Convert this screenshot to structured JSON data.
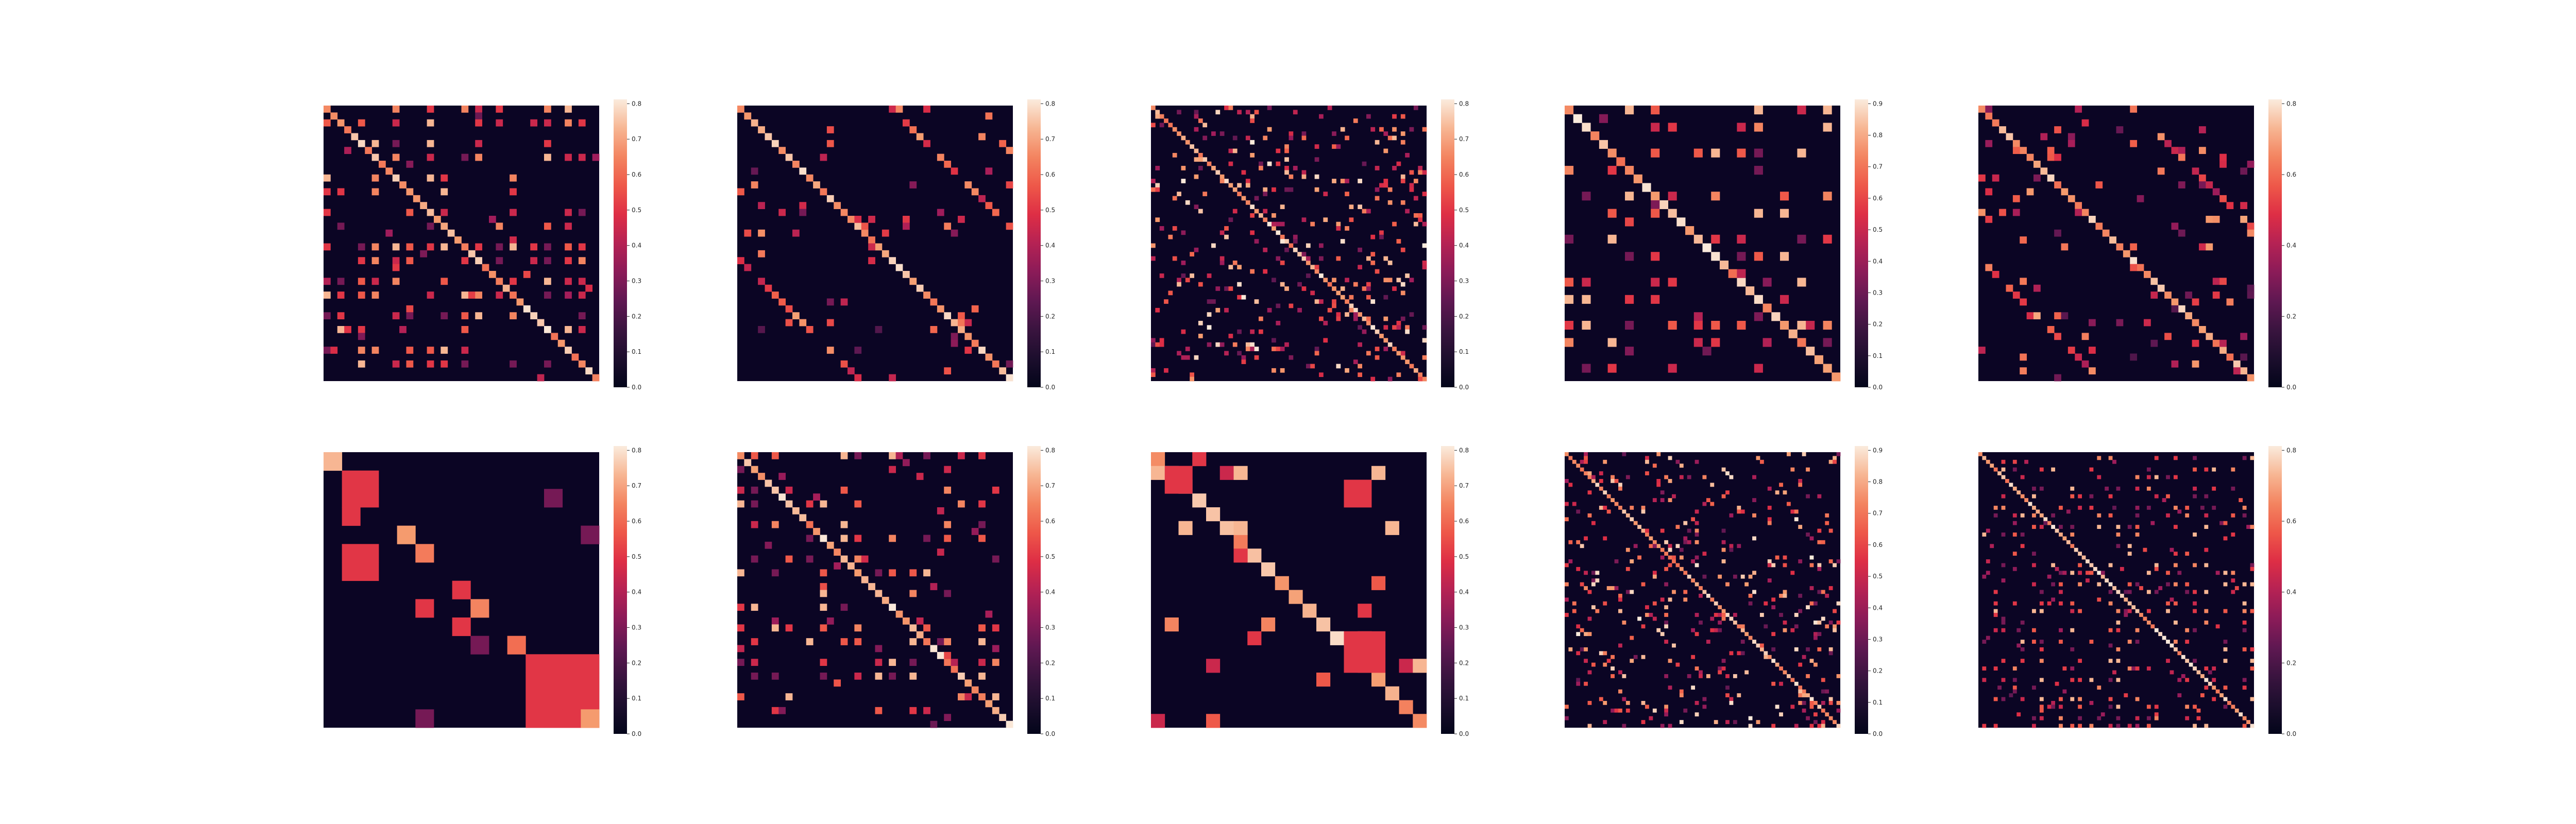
{
  "chart_data": [
    {
      "type": "heatmap",
      "pattern": "block-grid",
      "n": 40,
      "seed": 11,
      "density": 0.55,
      "cbar_max": 0.8,
      "cbar_ticks": [
        "0.0",
        "0.1",
        "0.2",
        "0.3",
        "0.4",
        "0.5",
        "0.6",
        "0.7",
        "0.8"
      ]
    },
    {
      "type": "heatmap",
      "pattern": "offdiag",
      "n": 40,
      "seed": 23,
      "density": 0.03,
      "cbar_max": 0.8,
      "cbar_ticks": [
        "0.0",
        "0.1",
        "0.2",
        "0.3",
        "0.4",
        "0.5",
        "0.6",
        "0.7",
        "0.8"
      ]
    },
    {
      "type": "heatmap",
      "pattern": "dense-dots",
      "n": 64,
      "seed": 37,
      "density": 0.09,
      "cbar_max": 0.8,
      "cbar_ticks": [
        "0.0",
        "0.1",
        "0.2",
        "0.3",
        "0.4",
        "0.5",
        "0.6",
        "0.7",
        "0.8"
      ]
    },
    {
      "type": "heatmap",
      "pattern": "block-grid",
      "n": 32,
      "seed": 41,
      "density": 0.4,
      "cbar_max": 0.9,
      "cbar_ticks": [
        "0.0",
        "0.1",
        "0.2",
        "0.3",
        "0.4",
        "0.5",
        "0.6",
        "0.7",
        "0.8",
        "0.9"
      ]
    },
    {
      "type": "heatmap",
      "pattern": "offdiag",
      "n": 40,
      "seed": 53,
      "density": 0.06,
      "cbar_max": 0.8,
      "cbar_ticks": [
        "0.0",
        "0.2",
        "0.4",
        "0.6",
        "0.8"
      ]
    },
    {
      "type": "heatmap",
      "pattern": "big-blocks",
      "n": 15,
      "seed": 61,
      "density": 0.0,
      "cbar_max": 0.8,
      "cbar_ticks": [
        "0.0",
        "0.1",
        "0.2",
        "0.3",
        "0.4",
        "0.5",
        "0.6",
        "0.7",
        "0.8"
      ]
    },
    {
      "type": "heatmap",
      "pattern": "block-grid",
      "n": 40,
      "seed": 71,
      "density": 0.3,
      "cbar_max": 0.8,
      "cbar_ticks": [
        "0.0",
        "0.1",
        "0.2",
        "0.3",
        "0.4",
        "0.5",
        "0.6",
        "0.7",
        "0.8"
      ]
    },
    {
      "type": "heatmap",
      "pattern": "medium-blocks",
      "n": 20,
      "seed": 83,
      "density": 0.05,
      "cbar_max": 0.8,
      "cbar_ticks": [
        "0.0",
        "0.1",
        "0.2",
        "0.3",
        "0.4",
        "0.5",
        "0.6",
        "0.7",
        "0.8"
      ]
    },
    {
      "type": "heatmap",
      "pattern": "dense-dots",
      "n": 72,
      "seed": 97,
      "density": 0.08,
      "cbar_max": 0.9,
      "cbar_ticks": [
        "0.0",
        "0.1",
        "0.2",
        "0.3",
        "0.4",
        "0.5",
        "0.6",
        "0.7",
        "0.8",
        "0.9"
      ]
    },
    {
      "type": "heatmap",
      "pattern": "block-grid",
      "n": 72,
      "seed": 103,
      "density": 0.35,
      "cbar_max": 0.8,
      "cbar_ticks": [
        "0.0",
        "0.2",
        "0.4",
        "0.6",
        "0.8"
      ]
    }
  ],
  "colors": {
    "colormap": "rocket",
    "background_cell": "#0b0524"
  }
}
